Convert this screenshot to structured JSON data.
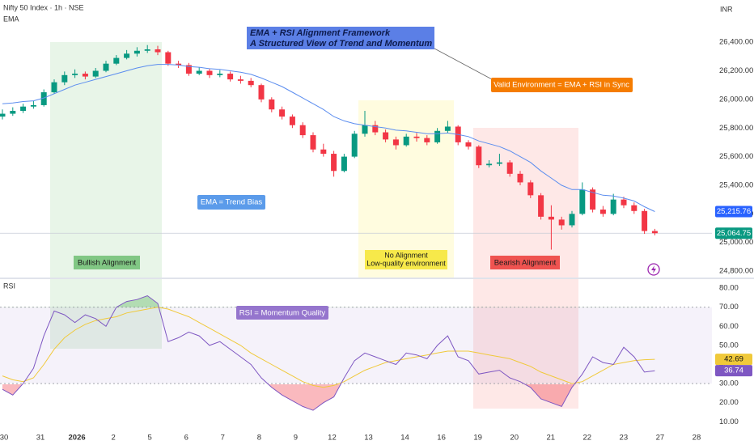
{
  "header": {
    "symbol": "Nifty 50 Index · 1h · NSE",
    "currency": "INR"
  },
  "annotations": {
    "title_line1": "EMA + RSI Alignment Framework",
    "title_line2": "A Structured View of Trend and Momentum",
    "valid": "Valid Environment = EMA + RSI in Sync",
    "ema_bias": "EMA = Trend Bias",
    "bullish": "Bullish Alignment",
    "no_alignment": "No Alignment",
    "low_quality": "Low-quality environment",
    "bearish": "Bearish Alignment",
    "rsi_quality": "RSI = Momentum Quality"
  },
  "chart_data": [
    {
      "type": "candlestick",
      "up_color": "#089981",
      "down_color": "#f23645",
      "open": [
        25880,
        25900,
        25920,
        25950,
        25960,
        26050,
        26120,
        26170,
        26180,
        26160,
        26200,
        26250,
        26290,
        26320,
        26340,
        26350,
        26330,
        26250,
        26240,
        26180,
        26200,
        26170,
        26180,
        26140,
        26130,
        26100,
        26000,
        25930,
        25880,
        25820,
        25750,
        25650,
        25620,
        25500,
        25600,
        25760,
        25820,
        25770,
        25720,
        25680,
        25740,
        25730,
        25700,
        25780,
        25810,
        25700,
        25670,
        25540,
        25550,
        25560,
        25480,
        25420,
        25330,
        25180,
        25160,
        25120,
        25200,
        25370,
        25230,
        25200,
        25300,
        25260,
        25220,
        25080
      ],
      "high": [
        25930,
        25945,
        25970,
        25990,
        26070,
        26140,
        26195,
        26210,
        26195,
        26220,
        26270,
        26310,
        26345,
        26365,
        26380,
        26375,
        26340,
        26270,
        26255,
        26225,
        26215,
        26205,
        26195,
        26165,
        26150,
        26110,
        26015,
        25950,
        25895,
        25840,
        25770,
        25690,
        25640,
        25620,
        25780,
        25920,
        25850,
        25790,
        25740,
        25760,
        25765,
        25750,
        25800,
        25850,
        25820,
        25715,
        25680,
        25575,
        25620,
        25575,
        25500,
        25435,
        25345,
        25260,
        25180,
        25220,
        25420,
        25385,
        25255,
        25340,
        25320,
        25280,
        25235,
        25095
      ],
      "low": [
        25860,
        25885,
        25905,
        25935,
        25950,
        26040,
        26100,
        26150,
        26140,
        26150,
        26190,
        26240,
        26280,
        26300,
        26325,
        26310,
        26235,
        26220,
        26165,
        26170,
        26150,
        26155,
        26125,
        26110,
        26085,
        25980,
        25910,
        25860,
        25800,
        25730,
        25630,
        25600,
        25460,
        25490,
        25590,
        25740,
        25750,
        25700,
        25650,
        25670,
        25705,
        25680,
        25690,
        25765,
        25680,
        25650,
        25520,
        25525,
        25535,
        25460,
        25400,
        25310,
        25160,
        24950,
        25090,
        25105,
        25190,
        25210,
        25180,
        25190,
        25240,
        25200,
        25060,
        25050
      ],
      "close": [
        25900,
        25920,
        25950,
        25960,
        26050,
        26120,
        26170,
        26180,
        26160,
        26200,
        26250,
        26290,
        26320,
        26340,
        26350,
        26330,
        26250,
        26240,
        26180,
        26200,
        26170,
        26180,
        26140,
        26130,
        26100,
        26000,
        25930,
        25880,
        25820,
        25750,
        25650,
        25620,
        25500,
        25600,
        25760,
        25820,
        25770,
        25720,
        25680,
        25740,
        25730,
        25700,
        25780,
        25810,
        25700,
        25670,
        25540,
        25550,
        25560,
        25480,
        25420,
        25330,
        25180,
        25160,
        25120,
        25200,
        25370,
        25230,
        25200,
        25300,
        25260,
        25220,
        25080,
        25064.75
      ],
      "value_labels": [
        null,
        null,
        null,
        null,
        null,
        null,
        null,
        null,
        null,
        null,
        null,
        null,
        null,
        null,
        null,
        null,
        null,
        null,
        null,
        null,
        null,
        null,
        null,
        null,
        null,
        null,
        null,
        null,
        null,
        null,
        null,
        null,
        null,
        null,
        null,
        null,
        null,
        null,
        null,
        null,
        null,
        null,
        null,
        null,
        null,
        null,
        null,
        null,
        null,
        null,
        null,
        null,
        null,
        null,
        null,
        null,
        null,
        null,
        null,
        null,
        null,
        null,
        null,
        "25,064.75"
      ],
      "series": [
        {
          "name": "EMA",
          "color": "#5b8def",
          "values": [
            25970,
            25975,
            25985,
            25990,
            26010,
            26040,
            26070,
            26100,
            26120,
            26140,
            26160,
            26180,
            26200,
            26220,
            26235,
            26245,
            26245,
            26240,
            26230,
            26225,
            26215,
            26210,
            26200,
            26190,
            26175,
            26150,
            26120,
            26090,
            26050,
            26010,
            25970,
            25930,
            25880,
            25850,
            25830,
            25820,
            25810,
            25800,
            25785,
            25780,
            25770,
            25760,
            25760,
            25765,
            25755,
            25740,
            25710,
            25690,
            25670,
            25640,
            25600,
            25560,
            25500,
            25450,
            25400,
            25370,
            25370,
            25350,
            25330,
            25325,
            25310,
            25290,
            25250,
            25215.76
          ],
          "value_labels": [
            null,
            null,
            null,
            null,
            null,
            null,
            null,
            null,
            null,
            null,
            null,
            null,
            null,
            null,
            null,
            null,
            null,
            null,
            null,
            null,
            null,
            null,
            null,
            null,
            null,
            null,
            null,
            null,
            null,
            null,
            null,
            null,
            null,
            null,
            null,
            null,
            null,
            null,
            null,
            null,
            null,
            null,
            null,
            null,
            null,
            null,
            null,
            null,
            null,
            null,
            null,
            null,
            null,
            null,
            null,
            null,
            null,
            null,
            null,
            null,
            null,
            null,
            null,
            "25,215.76"
          ]
        }
      ],
      "ylim": [
        24755,
        26695
      ],
      "yticks": [
        {
          "value": 24800,
          "label": "24,800.00"
        },
        {
          "value": 25000,
          "label": "25,000.00"
        },
        {
          "value": 25200,
          "label": "25,200.00"
        },
        {
          "value": 25400,
          "label": "25,400.00"
        },
        {
          "value": 25600,
          "label": "25,600.00"
        },
        {
          "value": 25800,
          "label": "25,800.00"
        },
        {
          "value": 26000,
          "label": "26,000.00"
        },
        {
          "value": 26200,
          "label": "26,200.00"
        },
        {
          "value": 26400,
          "label": "26,400.00"
        }
      ]
    },
    {
      "type": "line",
      "title": "RSI",
      "bands": [
        30,
        70
      ],
      "series": [
        {
          "name": "RSI",
          "color": "#7e57c2",
          "values": [
            27,
            24,
            30,
            38,
            55,
            68,
            66,
            62,
            66,
            64,
            60,
            70,
            73,
            74,
            76,
            72,
            52,
            54,
            57,
            55,
            50,
            52,
            48,
            44,
            40,
            33,
            28,
            24,
            21,
            18,
            16,
            20,
            23,
            33,
            42,
            46,
            44,
            42,
            40,
            46,
            45,
            43,
            50,
            55,
            44,
            42,
            35,
            36,
            37,
            33,
            31,
            28,
            22,
            20,
            18,
            28,
            35,
            44,
            41,
            40,
            49,
            44,
            36,
            36.74
          ]
        },
        {
          "color": "#f0c93a",
          "values": [
            34,
            32,
            31,
            33,
            40,
            48,
            54,
            58,
            61,
            63,
            64,
            65,
            67,
            68,
            69,
            70,
            69,
            67,
            65,
            62,
            59,
            56,
            53,
            50,
            46,
            43,
            40,
            37,
            34,
            31,
            29,
            28,
            29,
            31,
            34,
            37,
            39,
            41,
            42,
            43,
            44,
            45,
            46,
            47,
            47,
            47,
            46,
            45,
            44,
            43,
            41,
            39,
            36,
            34,
            32,
            30,
            31,
            34,
            37,
            40,
            41,
            42,
            42.5,
            42.69
          ]
        }
      ],
      "ylim": [
        6.3,
        84.7
      ],
      "yticks": [
        {
          "value": 10,
          "label": "10.00"
        },
        {
          "value": 20,
          "label": "20.00"
        },
        {
          "value": 30,
          "label": "30.00"
        },
        {
          "value": 40,
          "label": "40.00"
        },
        {
          "value": 50,
          "label": "50.00"
        },
        {
          "value": 60,
          "label": "60.00"
        },
        {
          "value": 70,
          "label": "70.00"
        },
        {
          "value": 80,
          "label": "80.00"
        }
      ],
      "date_labels": [
        "30",
        "31",
        "2026",
        "2",
        "5",
        "6",
        "7",
        "8",
        "9",
        "12",
        "13",
        "14",
        "16",
        "19",
        "20",
        "21",
        "22",
        "23",
        "27",
        "28"
      ]
    }
  ]
}
